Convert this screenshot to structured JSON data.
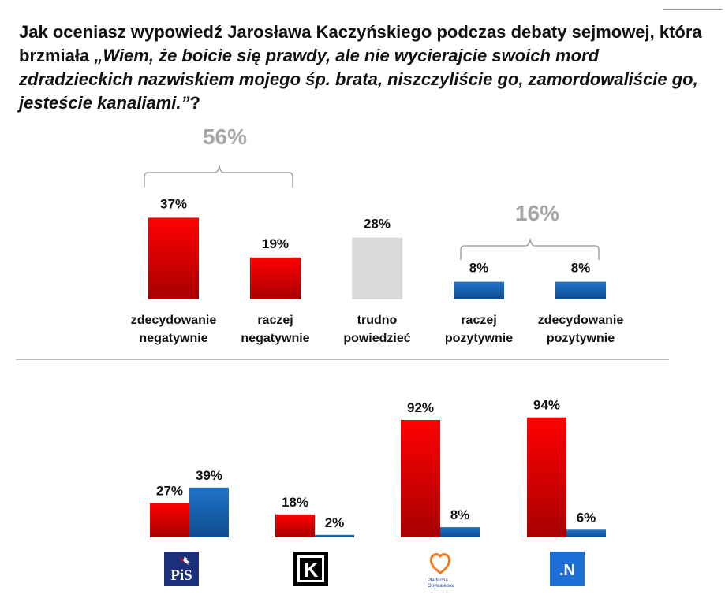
{
  "title": {
    "prefix": "Jak oceniasz wypowiedź Jarosława Kaczyńskiego podczas debaty sejmowej, która brzmiała ",
    "quote": "„Wiem, że boicie się prawdy, ale nie wycierajcie swoich mord zdradzieckich nazwiskiem mojego śp. brata, niszczyliście go, zamordowaliście go, jesteście kanaliami.”",
    "suffix": "?"
  },
  "groups": {
    "negative_total": "56%",
    "positive_total": "16%"
  },
  "parties": {
    "pis_label": "PiS",
    "kukiz_label": "K",
    "po_label_1": "Platforma",
    "po_label_2": "Obywatelska",
    "n_label": ".N"
  },
  "colors": {
    "red_top": "#ff0000",
    "red_bottom": "#a80000",
    "blue_top": "#1f74c8",
    "blue_bottom": "#0e4c90",
    "gray": "#d9d9d9",
    "bracket": "#a6a6a6"
  },
  "chart_data": [
    {
      "type": "bar",
      "title": "",
      "categories": [
        [
          "zdecydowanie",
          "negatywnie"
        ],
        [
          "raczej",
          "negatywnie"
        ],
        [
          "trudno",
          "powiedzieć"
        ],
        [
          "raczej",
          "pozytywnie"
        ],
        [
          "zdecydowanie",
          "pozytywnie"
        ]
      ],
      "values": [
        37,
        19,
        28,
        8,
        8
      ],
      "labels": [
        "37%",
        "19%",
        "28%",
        "8%",
        "8%"
      ],
      "colors": [
        "red",
        "red",
        "gray",
        "blue",
        "blue"
      ],
      "ylim": [
        0,
        100
      ]
    },
    {
      "type": "bar",
      "title": "",
      "categories": [
        "PiS",
        "Kukiz'15",
        "Platforma Obywatelska",
        ".Nowoczesna"
      ],
      "series": [
        {
          "name": "negatywnie",
          "values": [
            27,
            18,
            92,
            94
          ],
          "labels": [
            "27%",
            "18%",
            "92%",
            "94%"
          ]
        },
        {
          "name": "pozytywnie",
          "values": [
            39,
            2,
            8,
            6
          ],
          "labels": [
            "39%",
            "2%",
            "8%",
            "6%"
          ]
        }
      ],
      "ylim": [
        0,
        100
      ]
    }
  ]
}
